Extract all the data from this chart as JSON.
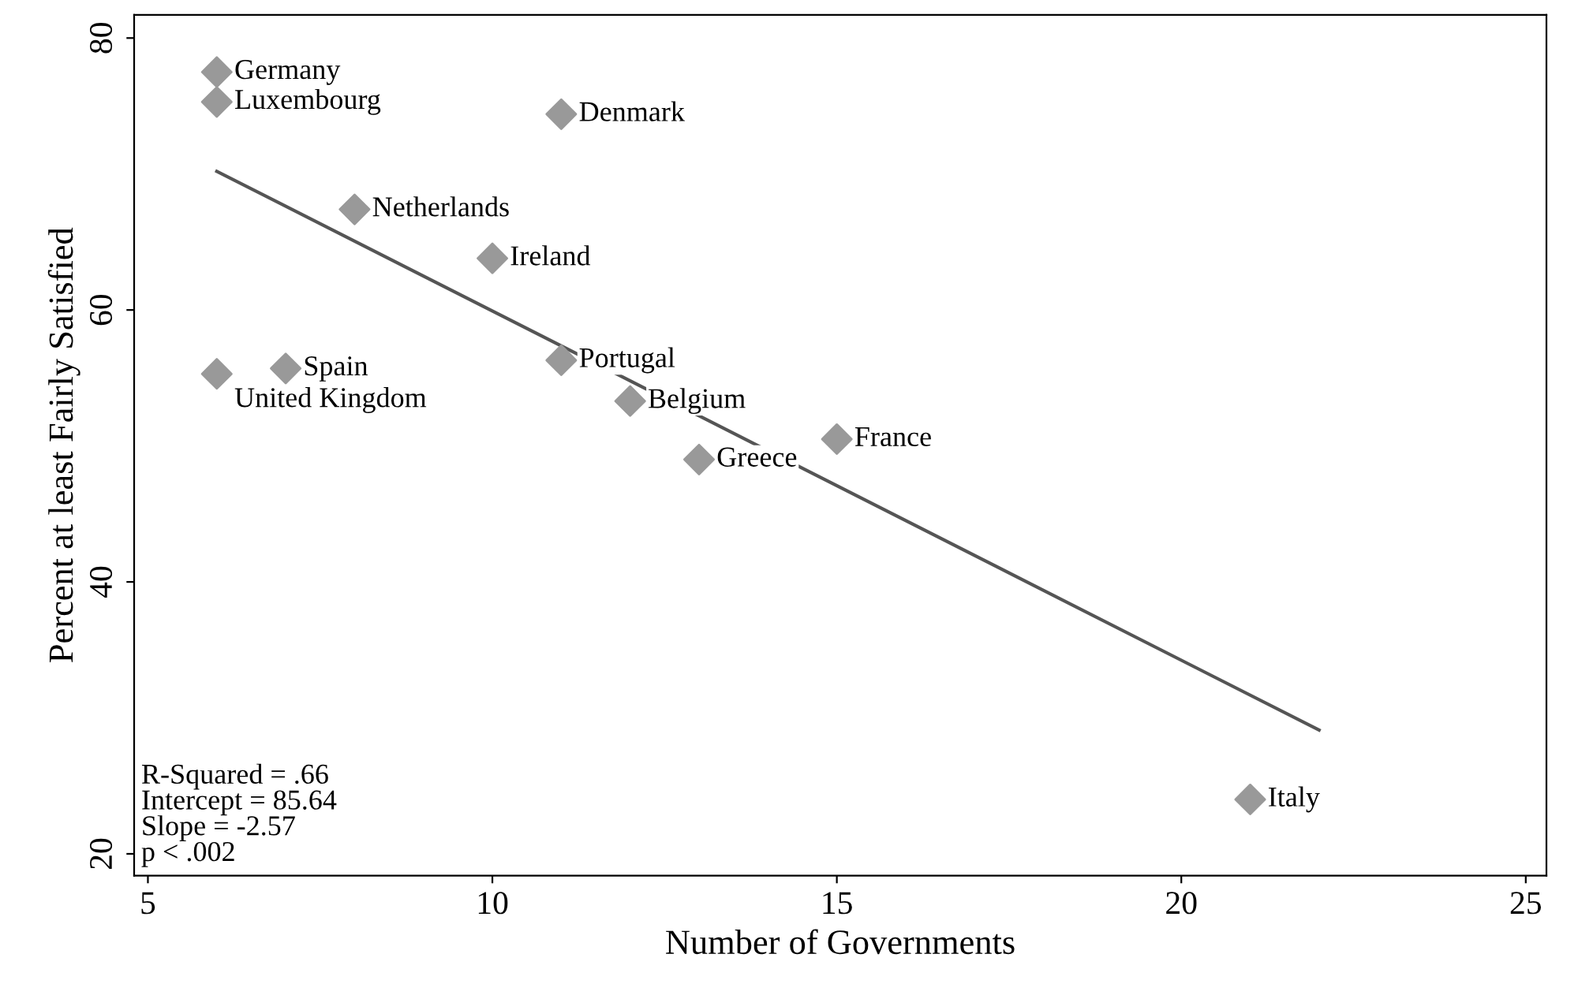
{
  "chart_data": {
    "type": "scatter",
    "xlabel": "Number of Governments",
    "ylabel": "Percent at least Fairly Satisfied",
    "xlim": [
      4.8,
      25.3
    ],
    "ylim": [
      18.4,
      81.7
    ],
    "xticks": [
      5,
      10,
      15,
      20,
      25
    ],
    "yticks": [
      20,
      40,
      60,
      80
    ],
    "grid": false,
    "legend": false,
    "series": [
      {
        "type": "scatter",
        "marker": "diamond",
        "color": "#999999",
        "x": [
          6,
          6,
          11,
          8,
          10,
          6,
          7,
          11,
          12,
          15,
          13,
          21
        ],
        "values": [
          77.5,
          75.3,
          74.4,
          67.4,
          63.8,
          55.3,
          55.7,
          56.3,
          53.3,
          50.5,
          49,
          24
        ],
        "value_labels": [
          "Germany",
          "Luxembourg",
          "Denmark",
          "Netherlands",
          "Ireland",
          "United Kingdom",
          "Spain",
          "Portugal",
          "Belgium",
          "France",
          "Greece",
          "Italy"
        ]
      },
      {
        "type": "line",
        "marker": "none",
        "color": "#555555",
        "x": [
          6,
          22
        ],
        "values": [
          70.2,
          29.1
        ]
      }
    ],
    "annotations": [
      "R-Squared = .66\nIntercept = 85.64\nSlope = -2.57\np < .002"
    ]
  }
}
